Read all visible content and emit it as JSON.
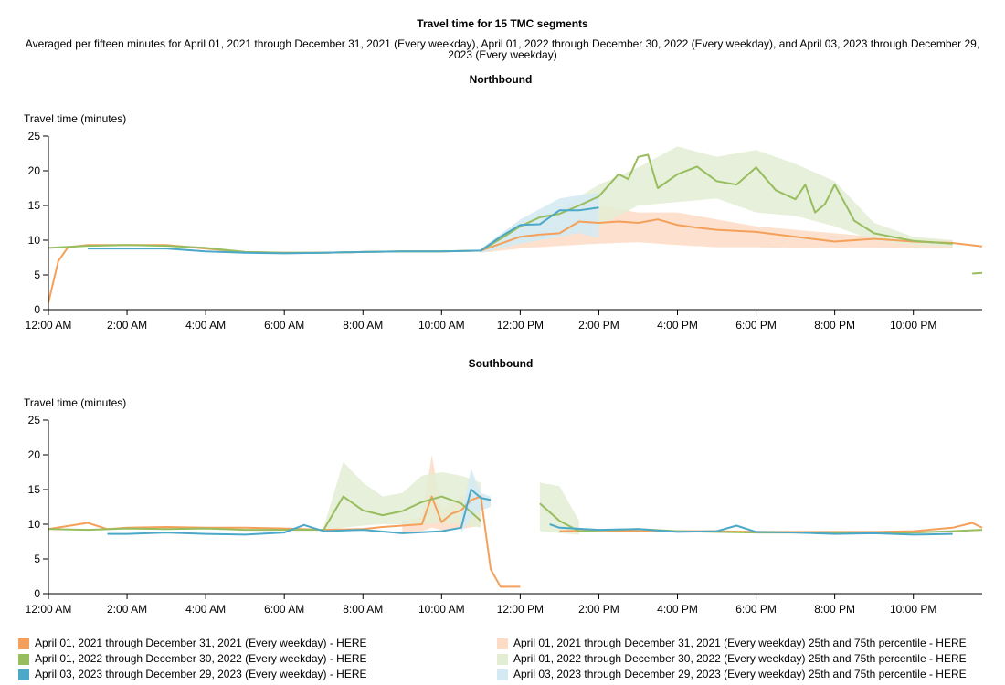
{
  "title": "Travel time for 15 TMC segments",
  "subtitle": "Averaged per fifteen minutes for April 01, 2021 through December 31, 2021 (Every weekday), April 01, 2022 through December 30, 2022 (Every weekday), and April 03, 2023 through December 29, 2023 (Every weekday)",
  "colors": {
    "s2021": "#f4a05a",
    "s2022": "#97bd5e",
    "s2023": "#4ba8c8",
    "b2021": "#fddcc6",
    "b2022": "#e3edd3",
    "b2023": "#d3eaf3"
  },
  "legend": {
    "left": [
      {
        "label": "April 01, 2021 through December 31, 2021 (Every weekday) - HERE",
        "color": "#f4a05a"
      },
      {
        "label": "April 01, 2022 through December 30, 2022 (Every weekday) - HERE",
        "color": "#97bd5e"
      },
      {
        "label": "April 03, 2023 through December 29, 2023 (Every weekday) - HERE",
        "color": "#4ba8c8"
      }
    ],
    "right": [
      {
        "label": "April 01, 2021 through December 31, 2021 (Every weekday) 25th and 75th percentile - HERE",
        "color": "#fddcc6"
      },
      {
        "label": "April 01, 2022 through December 30, 2022 (Every weekday) 25th and 75th percentile - HERE",
        "color": "#e3edd3"
      },
      {
        "label": "April 03, 2023 through December 29, 2023 (Every weekday) 25th and 75th percentile - HERE",
        "color": "#d3eaf3"
      }
    ]
  },
  "chart_data": [
    {
      "type": "line",
      "title": "Northbound",
      "ylabel": "Travel time (minutes)",
      "xlabel": "",
      "ylim": [
        0,
        25
      ],
      "yticks": [
        0,
        5,
        10,
        15,
        20,
        25
      ],
      "xlim": [
        0,
        23.75
      ],
      "xticks": [
        "12:00 AM",
        "2:00 AM",
        "4:00 AM",
        "6:00 AM",
        "8:00 AM",
        "10:00 AM",
        "12:00 PM",
        "2:00 PM",
        "4:00 PM",
        "6:00 PM",
        "8:00 PM",
        "10:00 PM"
      ],
      "x_unit": "hours after midnight",
      "series": [
        {
          "key": "s2021",
          "x": [
            0,
            0.25,
            0.5,
            1,
            2,
            3,
            4,
            5,
            6,
            7,
            8,
            9,
            10,
            11,
            11.5,
            12,
            12.5,
            13,
            13.5,
            14,
            14.5,
            15,
            15.5,
            16,
            16.5,
            17,
            18,
            19,
            20,
            21,
            22,
            23,
            23.75
          ],
          "y": [
            1,
            7,
            9,
            9.3,
            9.3,
            9.3,
            8.8,
            8.3,
            8.2,
            8.2,
            8.3,
            8.4,
            8.4,
            8.5,
            9.5,
            10.5,
            10.8,
            11,
            12.7,
            12.5,
            12.7,
            12.5,
            13,
            12.2,
            11.8,
            11.5,
            11.2,
            10.5,
            9.8,
            10.2,
            9.8,
            9.6,
            9.1
          ]
        },
        {
          "key": "s2022",
          "x": [
            0,
            1,
            2,
            3,
            4,
            5,
            6,
            7,
            8,
            9,
            10,
            11,
            11.5,
            12,
            12.5,
            13,
            13.5,
            14,
            14.5,
            14.75,
            15,
            15.25,
            15.5,
            16,
            16.5,
            17,
            17.5,
            18,
            18.5,
            19,
            19.25,
            19.5,
            19.75,
            20,
            20.5,
            21,
            22,
            23
          ],
          "y": [
            8.9,
            9.2,
            9.3,
            9.2,
            8.9,
            8.3,
            8.2,
            8.2,
            8.3,
            8.4,
            8.4,
            8.5,
            10.2,
            12,
            13.3,
            13.8,
            15,
            16.3,
            19.5,
            18.8,
            22,
            22.3,
            17.5,
            19.5,
            20.6,
            18.5,
            18,
            20.5,
            17.2,
            15.9,
            18,
            14,
            15.2,
            18,
            12.8,
            11,
            9.9,
            9.5
          ]
        },
        {
          "key": "s2022",
          "x": [
            23.5,
            23.75
          ],
          "y": [
            5.2,
            5.3
          ]
        },
        {
          "key": "s2023",
          "x": [
            1,
            2,
            3,
            4,
            5,
            6,
            7,
            8,
            9,
            10,
            11,
            11.5,
            12,
            12.5,
            13,
            13.5,
            14
          ],
          "y": [
            8.8,
            8.8,
            8.8,
            8.4,
            8.2,
            8.1,
            8.2,
            8.3,
            8.4,
            8.4,
            8.5,
            10.5,
            12.2,
            12.3,
            14.3,
            14.3,
            14.7
          ]
        }
      ],
      "bands": [
        {
          "key": "b2021",
          "x": [
            11,
            12,
            13,
            14,
            15,
            16,
            17,
            18,
            19,
            20,
            21,
            22,
            23
          ],
          "low": [
            8.2,
            8.8,
            9.2,
            9.5,
            9.7,
            9.3,
            9.0,
            9.0,
            8.8,
            8.9,
            8.9,
            8.8,
            8.8
          ],
          "high": [
            8.7,
            10.5,
            12,
            15,
            14,
            14,
            13,
            12,
            11.5,
            11,
            10.5,
            10.2,
            10
          ]
        },
        {
          "key": "b2022",
          "x": [
            11,
            12,
            13,
            14,
            15,
            16,
            17,
            18,
            19,
            20,
            21,
            22,
            23
          ],
          "low": [
            8.3,
            9.5,
            10.5,
            12,
            15,
            15.5,
            16,
            14,
            13.5,
            12,
            10,
            9.3,
            9.0
          ],
          "high": [
            8.8,
            12.5,
            14.5,
            18,
            20.5,
            23.5,
            22,
            23,
            21,
            18.5,
            12.5,
            10.5,
            10
          ]
        },
        {
          "key": "b2023",
          "x": [
            11,
            12,
            13,
            13.5,
            14
          ],
          "low": [
            8.2,
            9.5,
            10.5,
            11,
            10.3
          ],
          "high": [
            8.8,
            13,
            16,
            16.5,
            16.8
          ]
        }
      ]
    },
    {
      "type": "line",
      "title": "Southbound",
      "ylabel": "Travel time (minutes)",
      "xlabel": "",
      "ylim": [
        0,
        25
      ],
      "yticks": [
        0,
        5,
        10,
        15,
        20,
        25
      ],
      "xlim": [
        0,
        23.75
      ],
      "xticks": [
        "12:00 AM",
        "2:00 AM",
        "4:00 AM",
        "6:00 AM",
        "8:00 AM",
        "10:00 AM",
        "12:00 PM",
        "2:00 PM",
        "4:00 PM",
        "6:00 PM",
        "8:00 PM",
        "10:00 PM"
      ],
      "x_unit": "hours after midnight",
      "series": [
        {
          "key": "s2021",
          "x": [
            0,
            1,
            1.5,
            2,
            3,
            4,
            5,
            6,
            7,
            8,
            8.5,
            9,
            9.5,
            9.75,
            10,
            10.25,
            10.5,
            10.75,
            11,
            11.25,
            11.5,
            12
          ],
          "y": [
            9.3,
            10.2,
            9.3,
            9.5,
            9.6,
            9.5,
            9.5,
            9.4,
            9.2,
            9.3,
            9.6,
            9.8,
            10,
            14,
            10.3,
            11.5,
            12,
            13.5,
            14,
            3.5,
            1,
            1
          ]
        },
        {
          "key": "s2021",
          "x": [
            13,
            14,
            15,
            16,
            17,
            18,
            19,
            20,
            21,
            22,
            23,
            23.5,
            23.75
          ],
          "y": [
            9,
            9.1,
            9,
            9,
            9,
            8.9,
            8.9,
            8.9,
            8.9,
            9,
            9.5,
            10.2,
            9.5
          ]
        },
        {
          "key": "s2022",
          "x": [
            0,
            1,
            2,
            3,
            4,
            5,
            6,
            7,
            7.5,
            8,
            8.5,
            9,
            9.5,
            10,
            10.5,
            11
          ],
          "y": [
            9.3,
            9.2,
            9.4,
            9.3,
            9.4,
            9.2,
            9.2,
            9.2,
            14,
            12,
            11.3,
            11.9,
            13.2,
            14,
            13,
            10.5
          ]
        },
        {
          "key": "s2022",
          "x": [
            12.5,
            13,
            13.5,
            14,
            15,
            16,
            17,
            18,
            19,
            20,
            21,
            22,
            23,
            23.75
          ],
          "y": [
            13,
            10.5,
            9,
            9.1,
            9.3,
            9,
            8.9,
            8.8,
            8.8,
            8.7,
            8.7,
            8.8,
            9,
            9.2
          ]
        },
        {
          "key": "s2023",
          "x": [
            1.5,
            2,
            3,
            4,
            5,
            6,
            6.5,
            7,
            8,
            9,
            10,
            10.5,
            10.75,
            11,
            11.25
          ],
          "y": [
            8.6,
            8.6,
            8.8,
            8.6,
            8.5,
            8.8,
            9.9,
            9,
            9.2,
            8.7,
            9,
            9.5,
            15,
            13.8,
            13.5
          ]
        },
        {
          "key": "s2023",
          "x": [
            12.75,
            13,
            14,
            15,
            16,
            17,
            17.5,
            18,
            19,
            20,
            21,
            22,
            23
          ],
          "y": [
            10,
            9.5,
            9.2,
            9.3,
            8.9,
            9,
            9.8,
            8.9,
            8.8,
            8.6,
            8.7,
            8.5,
            8.6
          ]
        }
      ],
      "bands": [
        {
          "key": "b2021",
          "x": [
            9,
            9.5,
            9.75,
            10,
            10.5,
            11
          ],
          "low": [
            8.8,
            9,
            9.5,
            9.2,
            9.3,
            9.8
          ],
          "high": [
            10.5,
            11,
            20,
            12,
            14,
            15
          ]
        },
        {
          "key": "b2022",
          "x": [
            7,
            7.5,
            8,
            8.5,
            9,
            9.5,
            10,
            10.5,
            11
          ],
          "low": [
            8.8,
            9.5,
            9.8,
            10,
            10,
            10,
            10.2,
            10,
            9.5
          ],
          "high": [
            9.5,
            19,
            16,
            14,
            14.5,
            17,
            17.5,
            17,
            16
          ]
        },
        {
          "key": "b2022",
          "x": [
            12.5,
            13,
            13.5
          ],
          "low": [
            9,
            8.7,
            8.5
          ],
          "high": [
            16,
            15.5,
            10.5
          ]
        },
        {
          "key": "b2023",
          "x": [
            10.5,
            10.75,
            11,
            11.25
          ],
          "low": [
            8.8,
            11,
            12,
            12.5
          ],
          "high": [
            11,
            18,
            14.5,
            14
          ]
        }
      ]
    }
  ]
}
